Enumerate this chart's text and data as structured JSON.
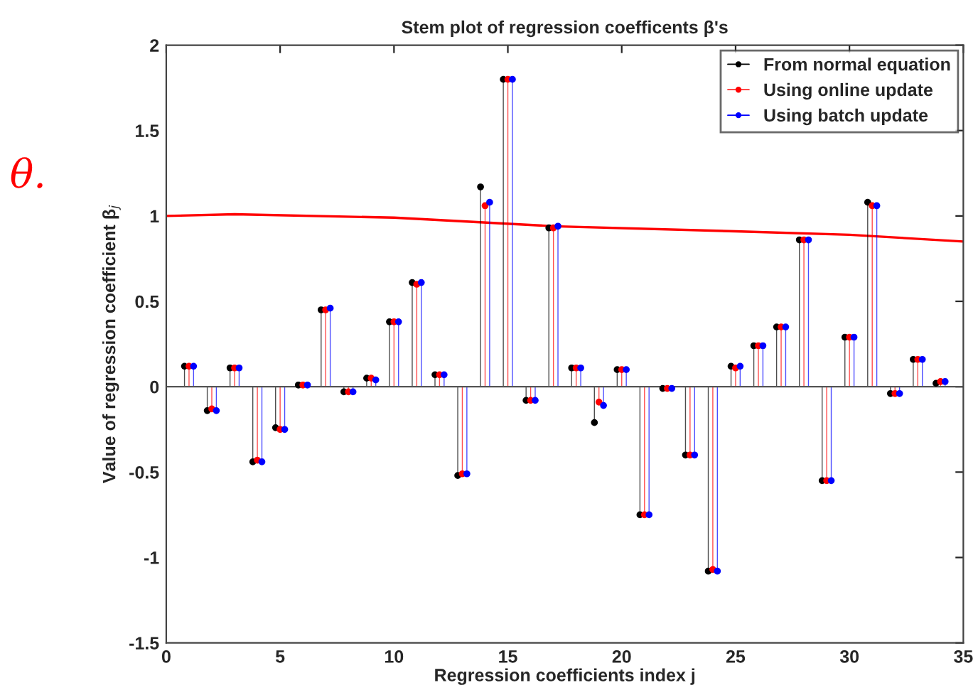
{
  "chart_data": {
    "type": "lollipop",
    "title": "Stem plot of regression coefficents β's",
    "xlabel": "Regression coefficients index j",
    "ylabel": "Value of regression coefficient β$_{j}$",
    "xlim": [
      0,
      35
    ],
    "xticks": [
      0,
      5,
      10,
      15,
      20,
      25,
      30,
      35
    ],
    "ylim": [
      -1.5,
      2
    ],
    "yticks": [
      -1.5,
      -1,
      -0.5,
      0,
      0.5,
      1,
      1.5,
      2
    ],
    "grid": false,
    "legend": "top right",
    "marker": "circle",
    "ref_lines": [
      {
        "axis": "y",
        "value": 0,
        "color": "#555555"
      }
    ],
    "annotations": [
      "θ."
    ],
    "series": [
      {
        "name": "From normal equation",
        "color": "#000000",
        "x": [
          0.8,
          1.8,
          2.8,
          3.8,
          4.8,
          5.8,
          6.8,
          7.8,
          8.8,
          9.8,
          10.8,
          11.8,
          12.8,
          13.8,
          14.8,
          15.8,
          16.8,
          17.8,
          18.8,
          19.8,
          20.8,
          21.8,
          22.8,
          23.8,
          24.8,
          25.8,
          26.8,
          27.8,
          28.8,
          29.8,
          30.8,
          31.8,
          32.8,
          33.8
        ],
        "values": [
          0.12,
          -0.14,
          0.11,
          -0.44,
          -0.24,
          0.01,
          0.45,
          -0.03,
          0.05,
          0.38,
          0.61,
          0.07,
          -0.52,
          1.17,
          1.8,
          -0.08,
          0.93,
          0.11,
          -0.21,
          0.1,
          -0.75,
          -0.01,
          -0.4,
          -1.08,
          0.12,
          0.24,
          0.35,
          0.86,
          -0.55,
          0.29,
          1.08,
          -0.04,
          0.16,
          0.02
        ]
      },
      {
        "name": "Using online update",
        "color": "#ff0000",
        "x": [
          1,
          2,
          3,
          4,
          5,
          6,
          7,
          8,
          9,
          10,
          11,
          12,
          13,
          14,
          15,
          16,
          17,
          18,
          19,
          20,
          21,
          22,
          23,
          24,
          25,
          26,
          27,
          28,
          29,
          30,
          31,
          32,
          33,
          34
        ],
        "values": [
          0.12,
          -0.13,
          0.11,
          -0.43,
          -0.25,
          0.01,
          0.45,
          -0.03,
          0.05,
          0.38,
          0.6,
          0.07,
          -0.51,
          1.06,
          1.8,
          -0.08,
          0.93,
          0.11,
          -0.09,
          0.1,
          -0.75,
          -0.01,
          -0.4,
          -1.07,
          0.11,
          0.24,
          0.35,
          0.86,
          -0.55,
          0.29,
          1.06,
          -0.04,
          0.16,
          0.03
        ]
      },
      {
        "name": "Using batch update",
        "color": "#0000ff",
        "x": [
          1.2,
          2.2,
          3.2,
          4.2,
          5.2,
          6.2,
          7.2,
          8.2,
          9.2,
          10.2,
          11.2,
          12.2,
          13.2,
          14.2,
          15.2,
          16.2,
          17.2,
          18.2,
          19.2,
          20.2,
          21.2,
          22.2,
          23.2,
          24.2,
          25.2,
          26.2,
          27.2,
          28.2,
          29.2,
          30.2,
          31.2,
          32.2,
          33.2,
          34.2
        ],
        "values": [
          0.12,
          -0.14,
          0.11,
          -0.44,
          -0.25,
          0.01,
          0.46,
          -0.03,
          0.04,
          0.38,
          0.61,
          0.07,
          -0.51,
          1.08,
          1.8,
          -0.08,
          0.94,
          0.11,
          -0.11,
          0.1,
          -0.75,
          -0.01,
          -0.4,
          -1.08,
          0.12,
          0.24,
          0.35,
          0.86,
          -0.55,
          0.29,
          1.06,
          -0.04,
          0.16,
          0.03
        ]
      },
      {
        "type": "line",
        "marker": "none",
        "color": "#ff0000",
        "x": [
          0,
          3,
          10,
          17,
          25,
          30,
          35
        ],
        "values": [
          1.0,
          1.01,
          0.99,
          0.94,
          0.91,
          0.89,
          0.85
        ]
      }
    ]
  }
}
